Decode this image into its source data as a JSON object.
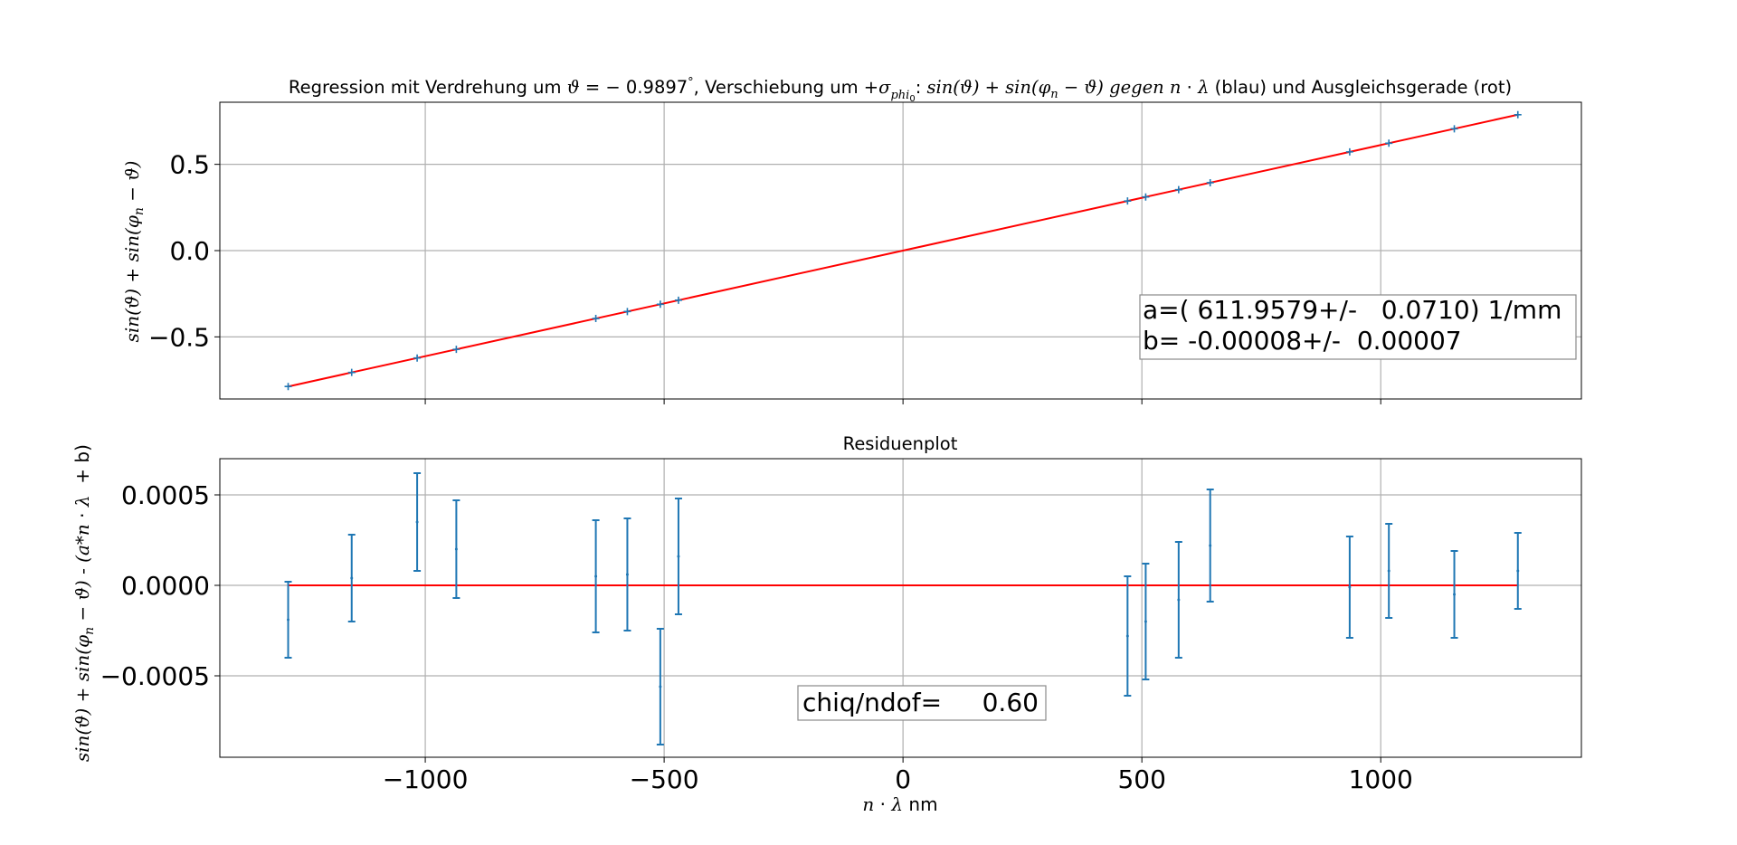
{
  "colors": {
    "data": "#1f77b4",
    "fit": "#ff0000",
    "grid": "#b0b0b0",
    "frame": "#000000"
  },
  "chart_data": [
    {
      "type": "scatter",
      "title": "Regression mit Verdrehung um ϑ = − 0.9897°, Verschiebung um +σphi0: sin(ϑ) + sin(φn − ϑ) gegen n·λ (blau) und Ausgleichsgerade (rot)",
      "title_parts": {
        "p1": "Regression mit Verdrehung um ",
        "p2": "ϑ",
        "p3": " = − 0.9897",
        "p4": "°",
        "p5": ", Verschiebung um +",
        "p6": "σ",
        "p7": "phi",
        "p8": "0",
        "p9": ": ",
        "p10": "sin",
        "p11": "(ϑ) + ",
        "p12": "sin",
        "p13": "(φ",
        "p14": "n",
        "p15": " − ϑ) gegen ",
        "p16": "n",
        "p17": " · ",
        "p18": "λ",
        "p19": "  (blau) und Ausgleichsgerade (rot)"
      },
      "ylabel": "sin(ϑ) + sin(φn − ϑ)",
      "ylabel_parts": {
        "a": "sin",
        "b": "(ϑ) + ",
        "c": "sin",
        "d": "(φ",
        "e": "n",
        "f": " − ϑ)"
      },
      "xlim": [
        -1430,
        1420
      ],
      "ylim": [
        -0.86,
        0.86
      ],
      "yticks": [
        "0.5",
        "0.0",
        "−0.5"
      ],
      "ytick_values": [
        0.5,
        0.0,
        -0.5
      ],
      "xticks_values": [
        -1000,
        -500,
        0,
        500,
        1000
      ],
      "grid": true,
      "series": [
        {
          "x": [
            -1287,
            -1154,
            -1017,
            -935,
            -643,
            -577,
            -508,
            -470,
            470,
            508,
            577,
            643,
            935,
            1017,
            1154,
            1287
          ],
          "y": [
            -0.7877,
            -0.7062,
            -0.6224,
            -0.5722,
            -0.3935,
            -0.3531,
            -0.3109,
            -0.2876,
            0.2876,
            0.3109,
            0.3531,
            0.3935,
            0.5722,
            0.6224,
            0.7062,
            0.7877
          ]
        }
      ],
      "fit_line": {
        "x": [
          -1287,
          1287
        ],
        "y": [
          -0.7877,
          0.7877
        ]
      },
      "annotation": {
        "line1": "a=( 611.9579+/-   0.0710) 1/mm",
        "line2": "b= -0.00008+/-  0.00007"
      }
    },
    {
      "type": "scatter",
      "title": "Residuenplot",
      "ylabel": "sin(ϑ) + sin(φn − ϑ) - (a*n · λ  + b)",
      "ylabel_parts": {
        "a": "sin",
        "b": "(ϑ) + ",
        "c": "sin",
        "d": "(φ",
        "e": "n",
        "f": " − ϑ) - (a*",
        "g": "n",
        "h": " · ",
        "i": "λ",
        "j": "  + b)"
      },
      "xlabel": "n · λ nm",
      "xlabel_parts": {
        "a": "n",
        "b": " · ",
        "c": "λ",
        "d": " nm"
      },
      "xlim": [
        -1430,
        1420
      ],
      "ylim": [
        -0.00095,
        0.0007
      ],
      "yticks": [
        "0.0005",
        "0.0000",
        "−0.0005"
      ],
      "ytick_values": [
        0.0005,
        0.0,
        -0.0005
      ],
      "xticks": [
        "−1000",
        "−500",
        "0",
        "500",
        "1000"
      ],
      "xticks_values": [
        -1000,
        -500,
        0,
        500,
        1000
      ],
      "grid": true,
      "series": [
        {
          "x": [
            -1287,
            -1154,
            -1017,
            -935,
            -643,
            -577,
            -508,
            -470,
            470,
            508,
            577,
            643,
            935,
            1017,
            1154,
            1287
          ],
          "y": [
            -0.00019,
            4e-05,
            0.00035,
            0.0002,
            5e-05,
            6e-05,
            -0.00056,
            0.00016,
            -0.00028,
            -0.0002,
            -8e-05,
            0.00022,
            -1e-05,
            8e-05,
            -5e-05,
            8e-05
          ],
          "yerr": [
            0.00021,
            0.00024,
            0.00027,
            0.00027,
            0.00031,
            0.00031,
            0.00032,
            0.00032,
            0.00033,
            0.00032,
            0.00032,
            0.00031,
            0.00028,
            0.00026,
            0.00024,
            0.00021
          ]
        }
      ],
      "fit_line": {
        "x": [
          -1287,
          1287
        ],
        "y": [
          0,
          0
        ]
      },
      "annotation": {
        "line1": "chiq/ndof=     0.60"
      }
    }
  ]
}
